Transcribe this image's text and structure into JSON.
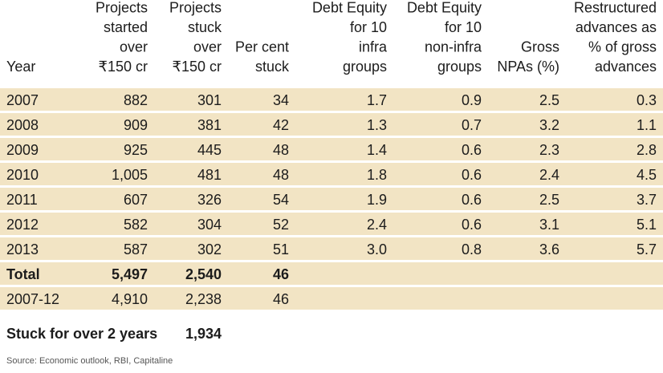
{
  "chart_data": {
    "type": "table",
    "columns": [
      [
        "Year"
      ],
      [
        "Projects",
        "started",
        "over",
        "₹150 cr"
      ],
      [
        "Projects",
        "stuck",
        "over",
        "₹150 cr"
      ],
      [
        "Per cent",
        "stuck"
      ],
      [
        "Debt Equity",
        "for 10",
        "infra",
        "groups"
      ],
      [
        "Debt Equity",
        "for 10",
        "non-infra",
        "groups"
      ],
      [
        "Gross",
        "NPAs (%)"
      ],
      [
        "Restructured",
        "advances as",
        "% of gross",
        "advances"
      ]
    ],
    "rows": [
      [
        "2007",
        "882",
        "301",
        "34",
        "1.7",
        "0.9",
        "2.5",
        "0.3"
      ],
      [
        "2008",
        "909",
        "381",
        "42",
        "1.3",
        "0.7",
        "3.2",
        "1.1"
      ],
      [
        "2009",
        "925",
        "445",
        "48",
        "1.4",
        "0.6",
        "2.3",
        "2.8"
      ],
      [
        "2010",
        "1,005",
        "481",
        "48",
        "1.8",
        "0.6",
        "2.4",
        "4.5"
      ],
      [
        "2011",
        "607",
        "326",
        "54",
        "1.9",
        "0.6",
        "2.5",
        "3.7"
      ],
      [
        "2012",
        "582",
        "304",
        "52",
        "2.4",
        "0.6",
        "3.1",
        "5.1"
      ],
      [
        "2013",
        "587",
        "302",
        "51",
        "3.0",
        "0.8",
        "3.6",
        "5.7"
      ],
      [
        "Total",
        "5,497",
        "2,540",
        "46",
        "",
        "",
        "",
        ""
      ],
      [
        "2007-12",
        "4,910",
        "2,238",
        "46",
        "",
        "",
        "",
        ""
      ]
    ],
    "bold_rows": [
      7
    ],
    "footer_label": "Stuck for over 2 years",
    "footer_value": "1,934",
    "source": "Source: Economic outlook, RBI, Capitaline"
  },
  "colors": {
    "row_shade": "#f2e4c4",
    "row_rule": "#ffffff",
    "text": "#1c1c1c"
  }
}
